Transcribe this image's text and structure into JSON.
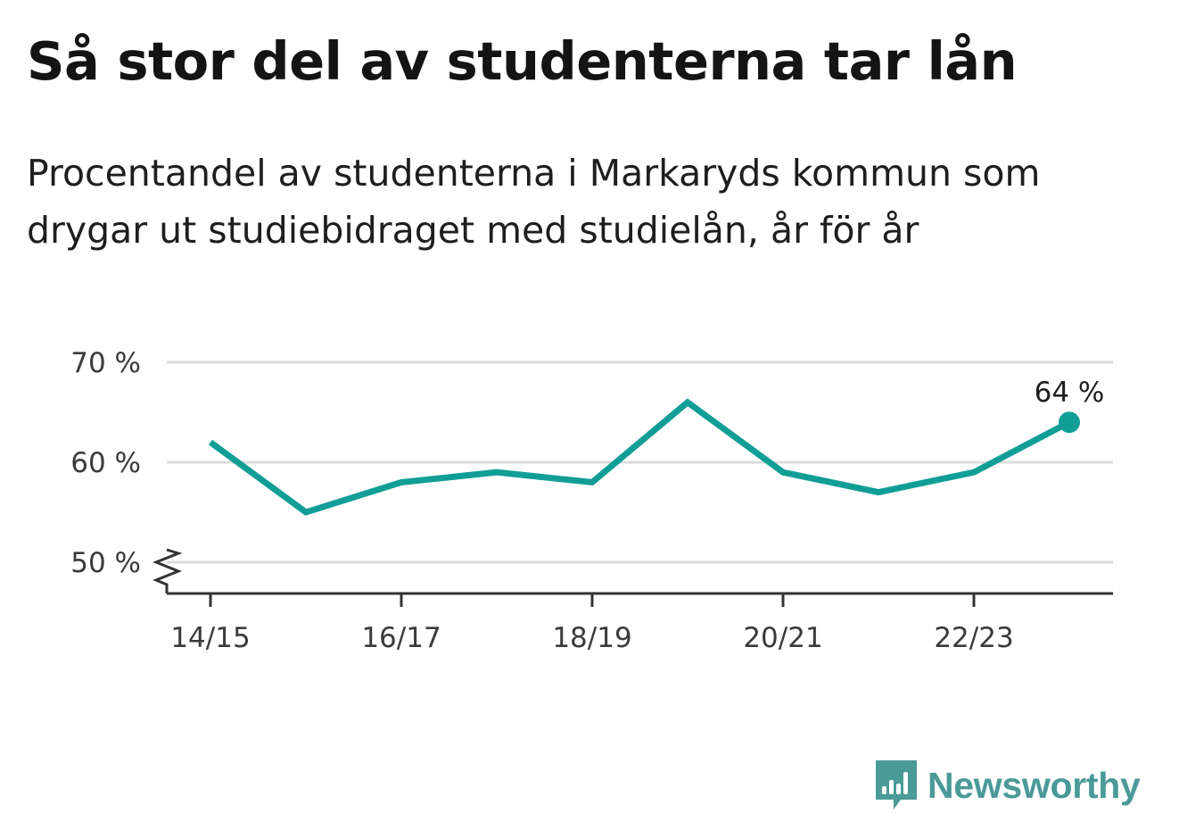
{
  "header": {
    "title": "Så stor del av studenterna tar lån",
    "subtitle": "Procentandel av studenterna i Markaryds kommun som drygar ut studiebidraget med studielån, år för år"
  },
  "brand": {
    "name": "Newsworthy",
    "icon": "bar-chart-speech-bubble-icon",
    "color": "#4a9a98"
  },
  "chart_data": {
    "type": "line",
    "categories": [
      "14/15",
      "15/16",
      "16/17",
      "17/18",
      "18/19",
      "19/20",
      "20/21",
      "21/22",
      "22/23",
      "23/24"
    ],
    "x_tick_labels": [
      "14/15",
      "16/17",
      "18/19",
      "20/21",
      "22/23"
    ],
    "series": [
      {
        "values": [
          62,
          55,
          58,
          59,
          58,
          66,
          59,
          57,
          59,
          64
        ],
        "color": "#119e96"
      }
    ],
    "y_ticks": [
      50,
      60,
      70
    ],
    "y_tick_labels": [
      "50 %",
      "60 %",
      "70 %"
    ],
    "ylim": [
      47,
      70
    ],
    "axis_break": true,
    "grid": true,
    "end_label": "64 %"
  }
}
